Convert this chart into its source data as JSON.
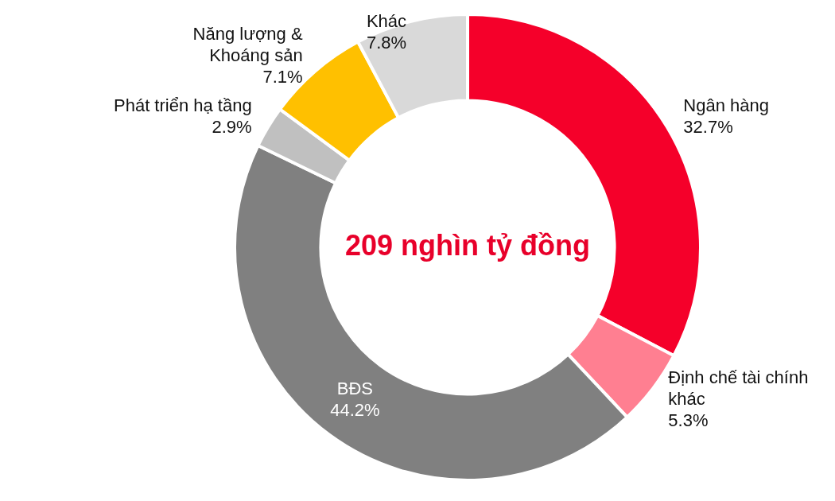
{
  "chart_data": {
    "type": "donut",
    "categories": [
      "Ngân hàng",
      "Định chế tài chính khác",
      "BĐS",
      "Phát triển hạ tầng",
      "Năng lượng & Khoáng sản",
      "Khác"
    ],
    "values": [
      32.7,
      5.3,
      44.2,
      2.9,
      7.1,
      7.8
    ],
    "value_labels": [
      "32.7%",
      "5.3%",
      "44.2%",
      "2.9%",
      "7.1%",
      "7.8%"
    ],
    "colors": [
      "#f5002a",
      "#ff7f91",
      "#808080",
      "#c0c0c0",
      "#ffc000",
      "#d9d9d9"
    ],
    "annotations": [
      "209 nghìn tỷ đồng"
    ],
    "legend": false
  }
}
